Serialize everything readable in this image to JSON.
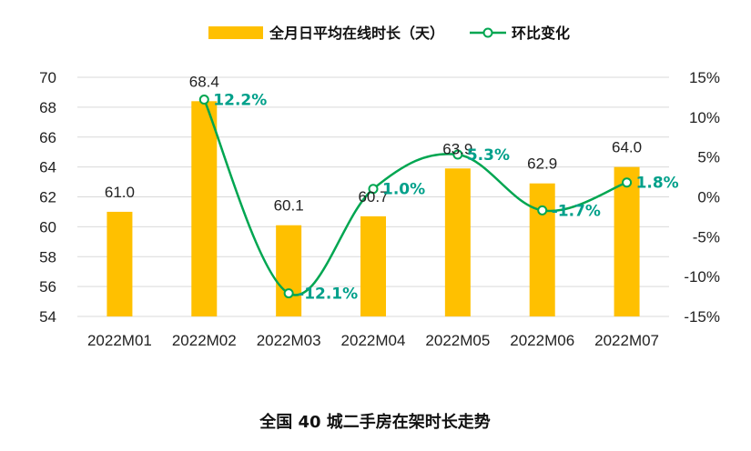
{
  "chart_data": {
    "type": "bar+line",
    "title": "全国 40 城二手房在架时长走势",
    "categories": [
      "2022M01",
      "2022M02",
      "2022M03",
      "2022M04",
      "2022M05",
      "2022M06",
      "2022M07"
    ],
    "series": [
      {
        "name": "全月日平均在线时长（天）",
        "type": "bar",
        "axis": "left",
        "values": [
          61.0,
          68.4,
          60.1,
          60.7,
          63.9,
          62.9,
          64.0
        ],
        "labels": [
          "61.0",
          "68.4",
          "60.1",
          "60.7",
          "63.9",
          "62.9",
          "64.0"
        ]
      },
      {
        "name": "环比变化",
        "type": "line",
        "axis": "right",
        "values": [
          null,
          12.2,
          -12.1,
          1.0,
          5.3,
          -1.7,
          1.8
        ],
        "labels": [
          "",
          "12.2%",
          "-12.1%",
          "1.0%",
          "5.3%",
          "-1.7%",
          "1.8%"
        ]
      }
    ],
    "left_axis": {
      "min": 54,
      "max": 70,
      "ticks": [
        "70",
        "68",
        "66",
        "64",
        "62",
        "60",
        "58",
        "56",
        "54"
      ]
    },
    "right_axis": {
      "min": -15,
      "max": 15,
      "ticks": [
        "15%",
        "10%",
        "5%",
        "0%",
        "-5%",
        "-10%",
        "-15%"
      ]
    },
    "colors": {
      "bar": "#FFC000",
      "line": "#00A651",
      "line_label": "#00A08A",
      "grid": "#D9D9D9"
    },
    "legend_position": "top",
    "grid": true
  }
}
